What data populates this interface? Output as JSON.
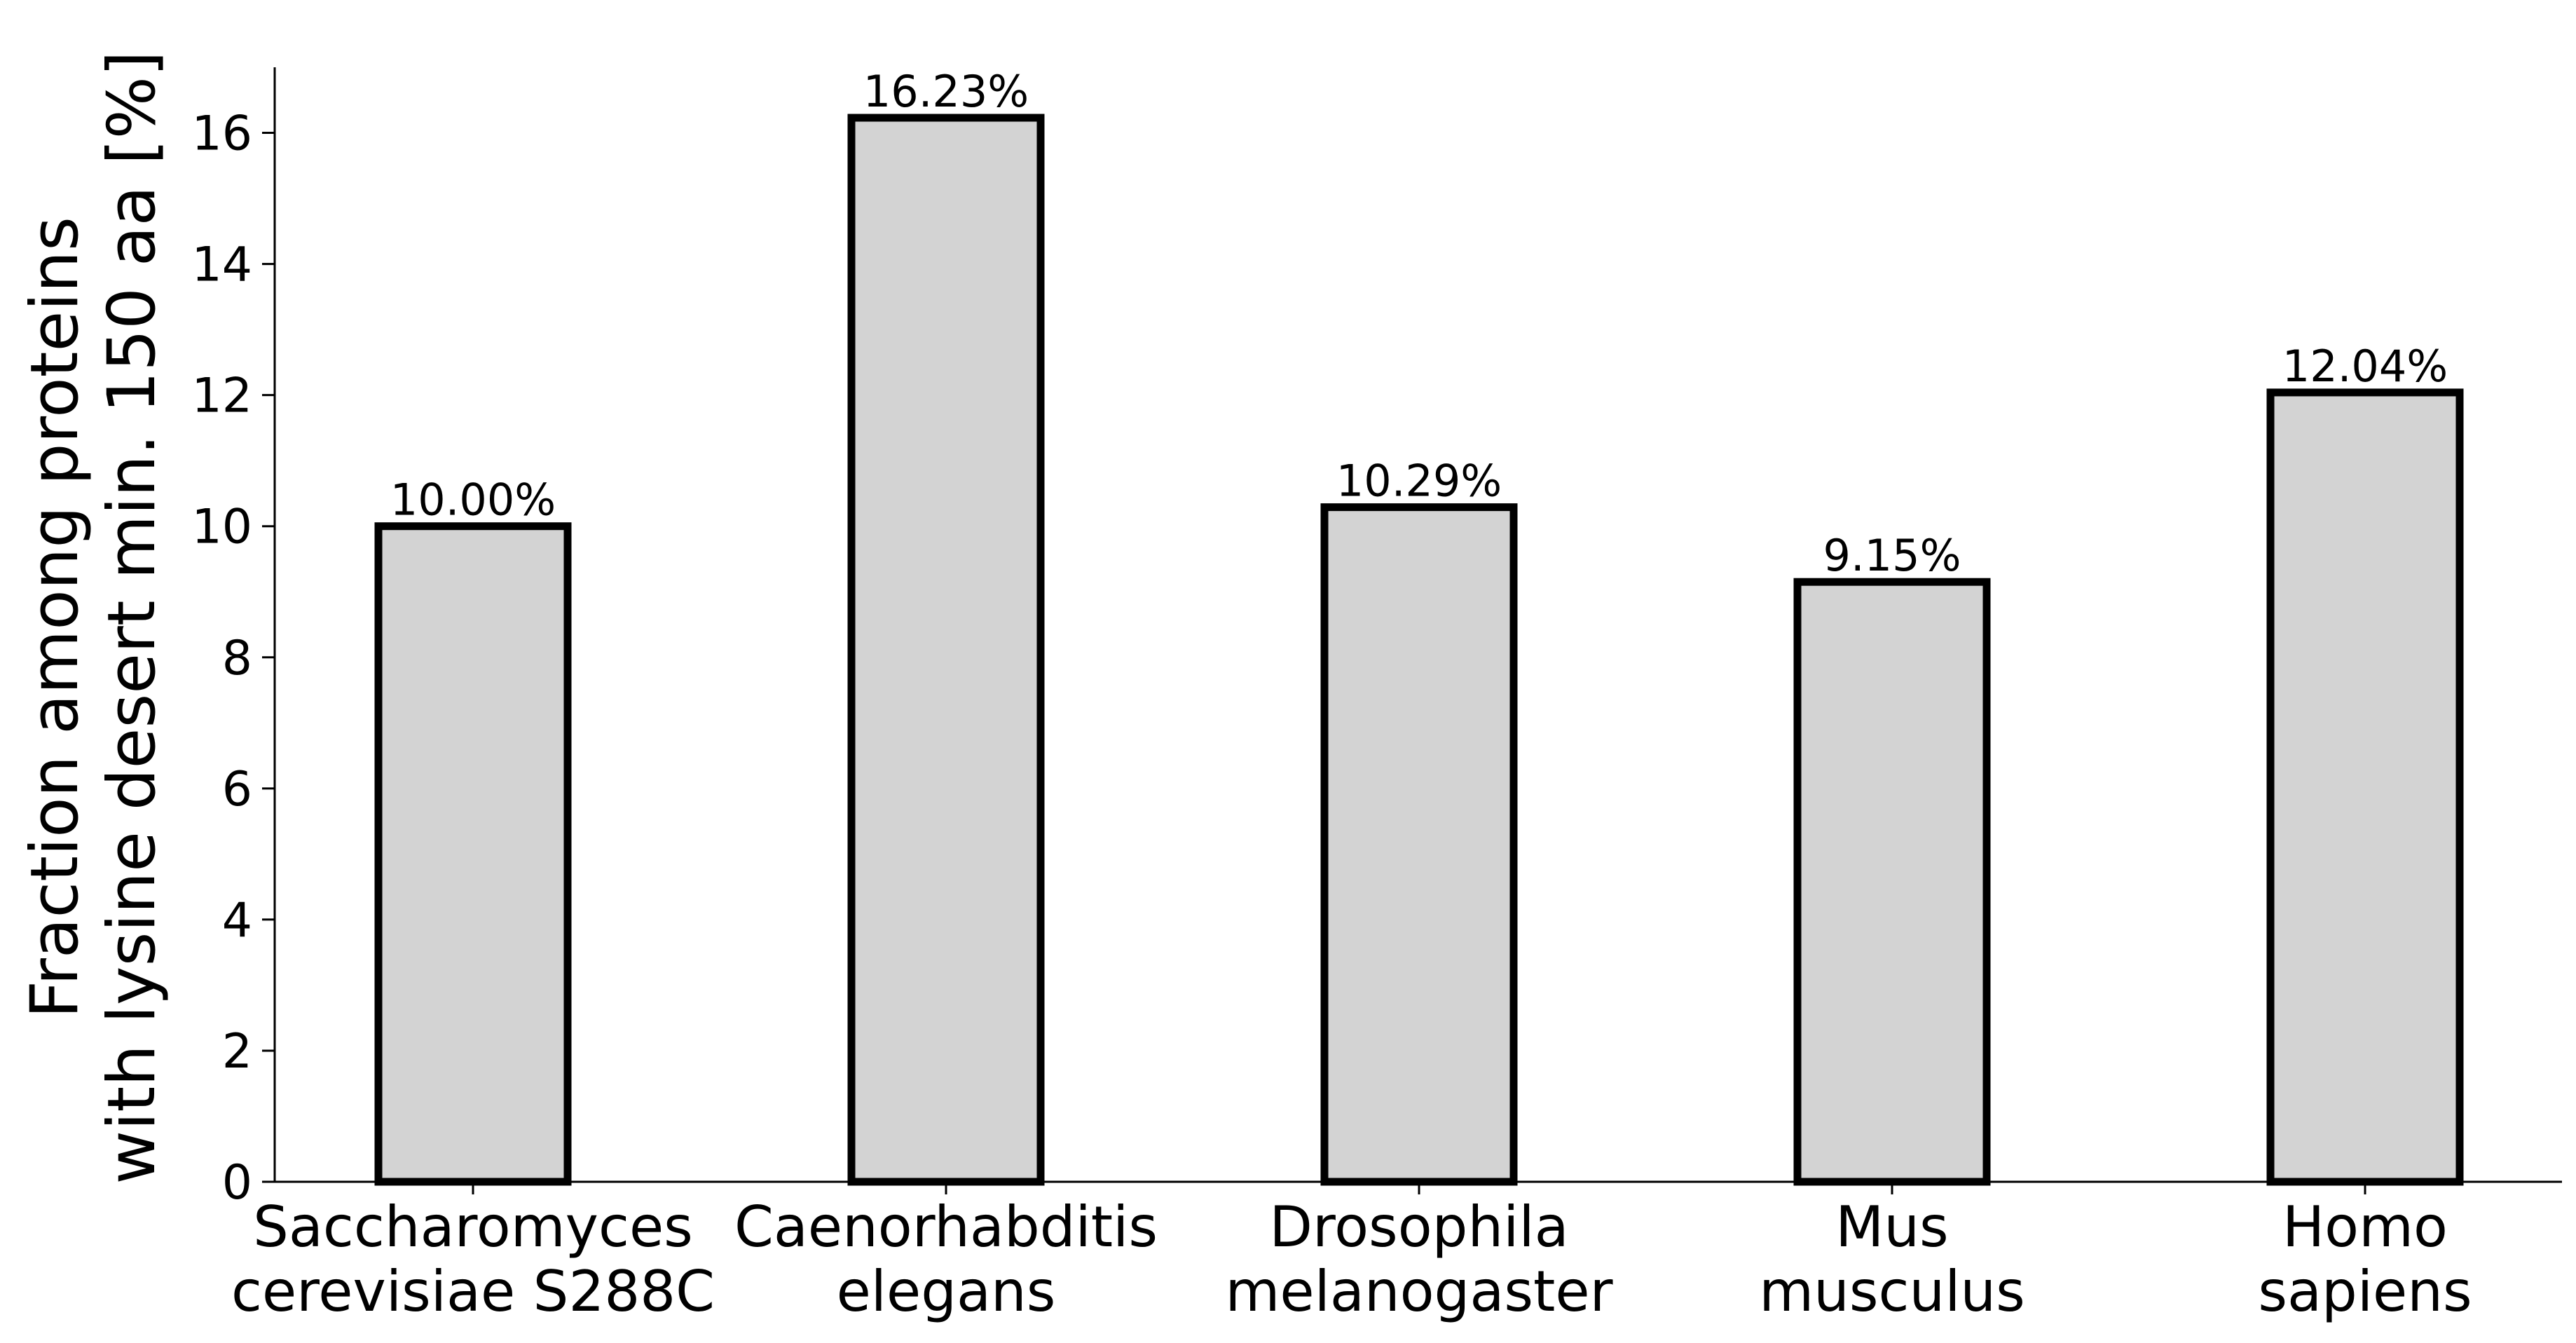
{
  "chart_data": {
    "type": "bar",
    "title": "",
    "xlabel": "",
    "ylabel_lines": [
      "Fraction among proteins",
      "with lysine desert min. 150 aa [%]"
    ],
    "categories": [
      [
        "Saccharomyces",
        "cerevisiae S288C"
      ],
      [
        "Caenorhabditis",
        "elegans"
      ],
      [
        "Drosophila",
        "melanogaster"
      ],
      [
        "Mus",
        "musculus"
      ],
      [
        "Homo",
        "sapiens"
      ]
    ],
    "values": [
      10.0,
      16.23,
      10.29,
      9.15,
      12.04
    ],
    "data_labels": [
      "10.00%",
      "16.23%",
      "10.29%",
      "9.15%",
      "12.04%"
    ],
    "y_ticks": [
      0,
      2,
      4,
      6,
      8,
      10,
      12,
      14,
      16
    ],
    "ylim": [
      0,
      17
    ],
    "grid": false,
    "legend": "none",
    "colors": {
      "bar_fill": "#d3d3d3",
      "bar_edge": "#000000",
      "axis": "#000000"
    }
  }
}
